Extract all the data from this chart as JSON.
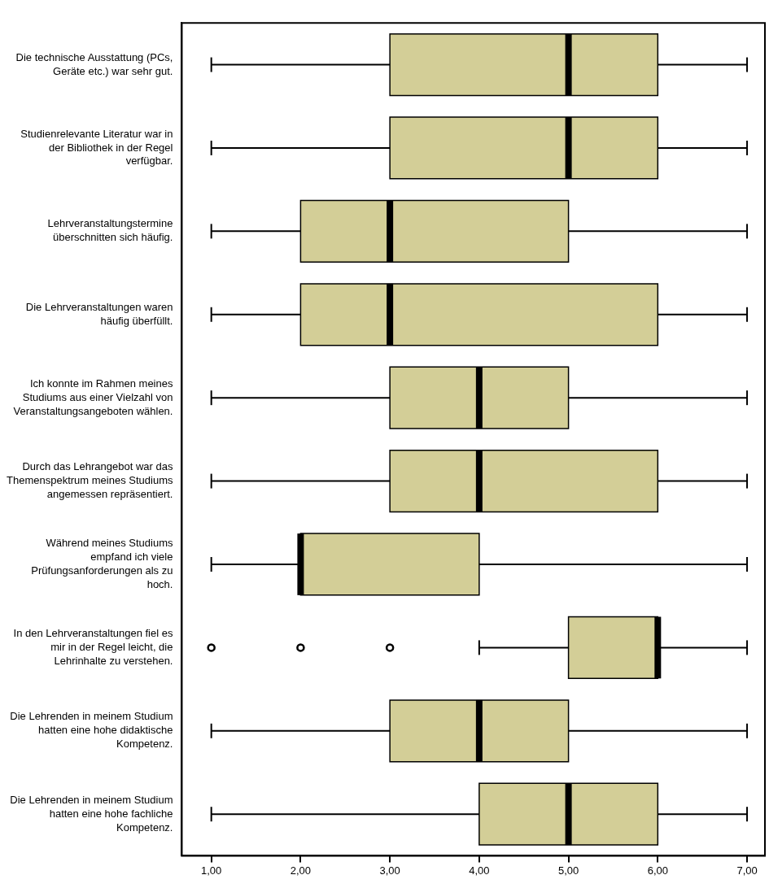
{
  "chart_data": {
    "type": "box",
    "orientation": "horizontal",
    "categories": [
      "Die technische Ausstattung (PCs, Geräte etc.) war sehr gut.",
      "Studienrelevante Literatur war in der Bibliothek in der Regel verfügbar.",
      "Lehrveranstaltungstermine überschnitten sich häufig.",
      "Die Lehrveranstaltungen waren häufig überfüllt.",
      "Ich konnte im Rahmen meines Studiums aus einer Vielzahl von Veranstaltungsangeboten wählen.",
      "Durch das Lehrangebot war das Themenspektrum meines Studiums angemessen repräsentiert.",
      "Während meines Studiums empfand ich viele Prüfungsanforderungen als zu hoch.",
      "In den Lehrveranstaltungen fiel es mir in der Regel leicht, die Lehrinhalte zu verstehen.",
      "Die Lehrenden in meinem Studium hatten eine hohe didaktische Kompetenz.",
      "Die Lehrenden in meinem Studium hatten eine hohe fachliche Kompetenz."
    ],
    "color": "#d3ce97",
    "boxes": [
      {
        "low": 1,
        "q1": 3,
        "median": 5,
        "q3": 6,
        "high": 7
      },
      {
        "low": 1,
        "q1": 3,
        "median": 5,
        "q3": 6,
        "high": 7
      },
      {
        "low": 1,
        "q1": 2,
        "median": 3,
        "q3": 5,
        "high": 7
      },
      {
        "low": 1,
        "q1": 2,
        "median": 3,
        "q3": 6,
        "high": 7
      },
      {
        "low": 1,
        "q1": 3,
        "median": 4,
        "q3": 5,
        "high": 7
      },
      {
        "low": 1,
        "q1": 3,
        "median": 4,
        "q3": 6,
        "high": 7
      },
      {
        "low": 1,
        "q1": 2,
        "median": 2,
        "q3": 4,
        "high": 7
      },
      {
        "low": 4,
        "q1": 5,
        "median": 6,
        "q3": 6,
        "high": 7,
        "outliers": [
          1,
          2,
          3
        ]
      },
      {
        "low": 1,
        "q1": 3,
        "median": 4,
        "q3": 5,
        "high": 7
      },
      {
        "low": 1,
        "q1": 4,
        "median": 5,
        "q3": 6,
        "high": 7
      }
    ],
    "xlim": [
      0.67,
      7.2
    ],
    "xticks": [
      {
        "value": 1,
        "label": "1,00"
      },
      {
        "value": 2,
        "label": "2,00"
      },
      {
        "value": 3,
        "label": "3,00"
      },
      {
        "value": 4,
        "label": "4,00"
      },
      {
        "value": 5,
        "label": "5,00"
      },
      {
        "value": 6,
        "label": "6,00"
      },
      {
        "value": 7,
        "label": "7,00"
      }
    ],
    "grid": false,
    "legend": false
  }
}
